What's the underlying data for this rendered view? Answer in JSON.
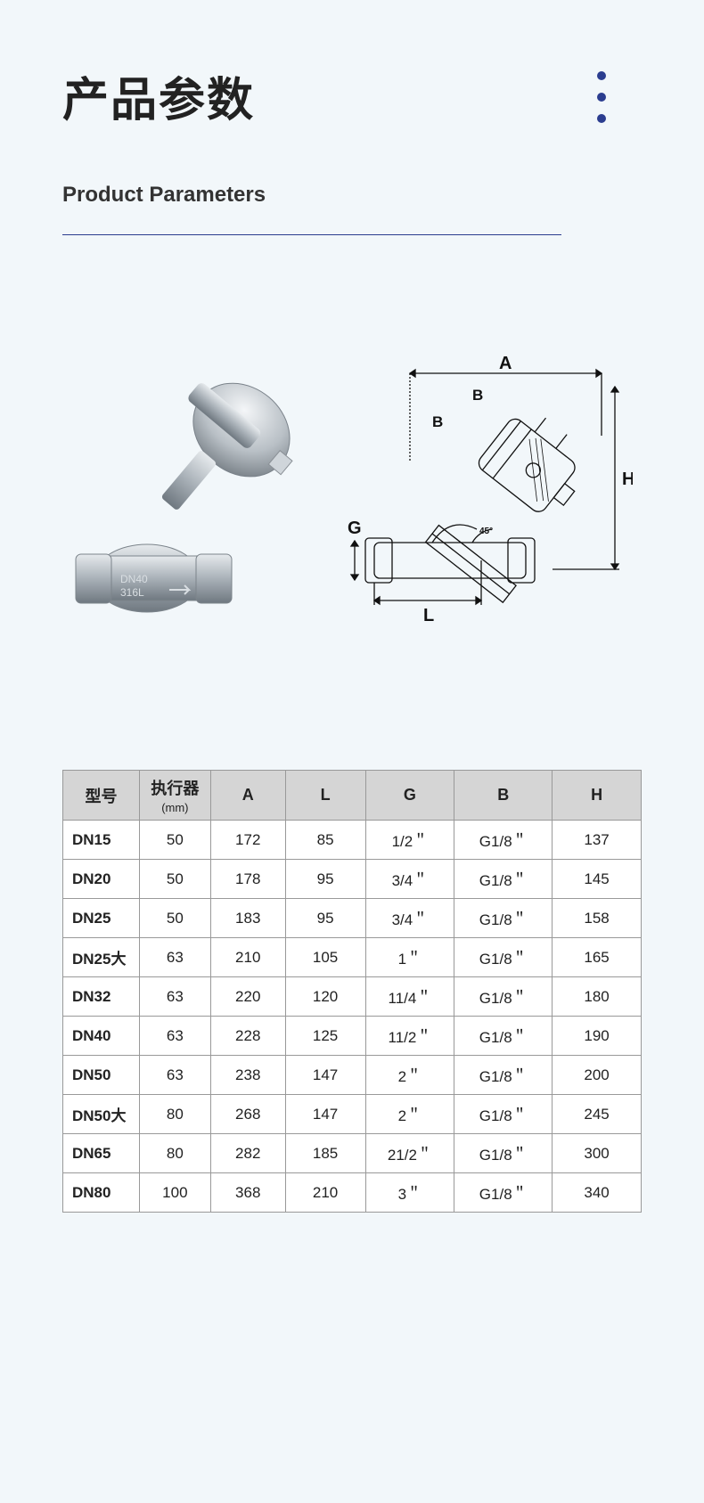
{
  "colors": {
    "page_bg": "#f2f7fa",
    "accent": "#2b3d8f",
    "text": "#222222",
    "table_header_bg": "#d5d5d5",
    "table_border": "#999999",
    "table_bg": "#ffffff"
  },
  "header": {
    "title_cn": "产品参数",
    "title_en": "Product Parameters"
  },
  "diagram": {
    "labels": {
      "A": "A",
      "B1": "B",
      "B2": "B",
      "H": "H",
      "G": "G",
      "L": "L",
      "angle": "45°"
    }
  },
  "spec_table": {
    "columns": [
      {
        "key": "model",
        "label": "型号"
      },
      {
        "key": "exec",
        "label": "执行器",
        "sub": "(mm)"
      },
      {
        "key": "A",
        "label": "A"
      },
      {
        "key": "L",
        "label": "L"
      },
      {
        "key": "G",
        "label": "G"
      },
      {
        "key": "B",
        "label": "B"
      },
      {
        "key": "H",
        "label": "H"
      }
    ],
    "rows": [
      {
        "model": "DN15",
        "exec": "50",
        "A": "172",
        "L": "85",
        "G": "1/2＂",
        "B": "G1/8＂",
        "H": "137"
      },
      {
        "model": "DN20",
        "exec": "50",
        "A": "178",
        "L": "95",
        "G": "3/4＂",
        "B": "G1/8＂",
        "H": "145"
      },
      {
        "model": "DN25",
        "exec": "50",
        "A": "183",
        "L": "95",
        "G": "3/4＂",
        "B": "G1/8＂",
        "H": "158"
      },
      {
        "model": "DN25大",
        "exec": "63",
        "A": "210",
        "L": "105",
        "G": "1＂",
        "B": "G1/8＂",
        "H": "165"
      },
      {
        "model": "DN32",
        "exec": "63",
        "A": "220",
        "L": "120",
        "G": "11/4＂",
        "B": "G1/8＂",
        "H": "180"
      },
      {
        "model": "DN40",
        "exec": "63",
        "A": "228",
        "L": "125",
        "G": "11/2＂",
        "B": "G1/8＂",
        "H": "190"
      },
      {
        "model": "DN50",
        "exec": "63",
        "A": "238",
        "L": "147",
        "G": "2＂",
        "B": "G1/8＂",
        "H": "200"
      },
      {
        "model": "DN50大",
        "exec": "80",
        "A": "268",
        "L": "147",
        "G": "2＂",
        "B": "G1/8＂",
        "H": "245"
      },
      {
        "model": "DN65",
        "exec": "80",
        "A": "282",
        "L": "185",
        "G": "21/2＂",
        "B": "G1/8＂",
        "H": "300"
      },
      {
        "model": "DN80",
        "exec": "100",
        "A": "368",
        "L": "210",
        "G": "3＂",
        "B": "G1/8＂",
        "H": "340"
      }
    ]
  }
}
